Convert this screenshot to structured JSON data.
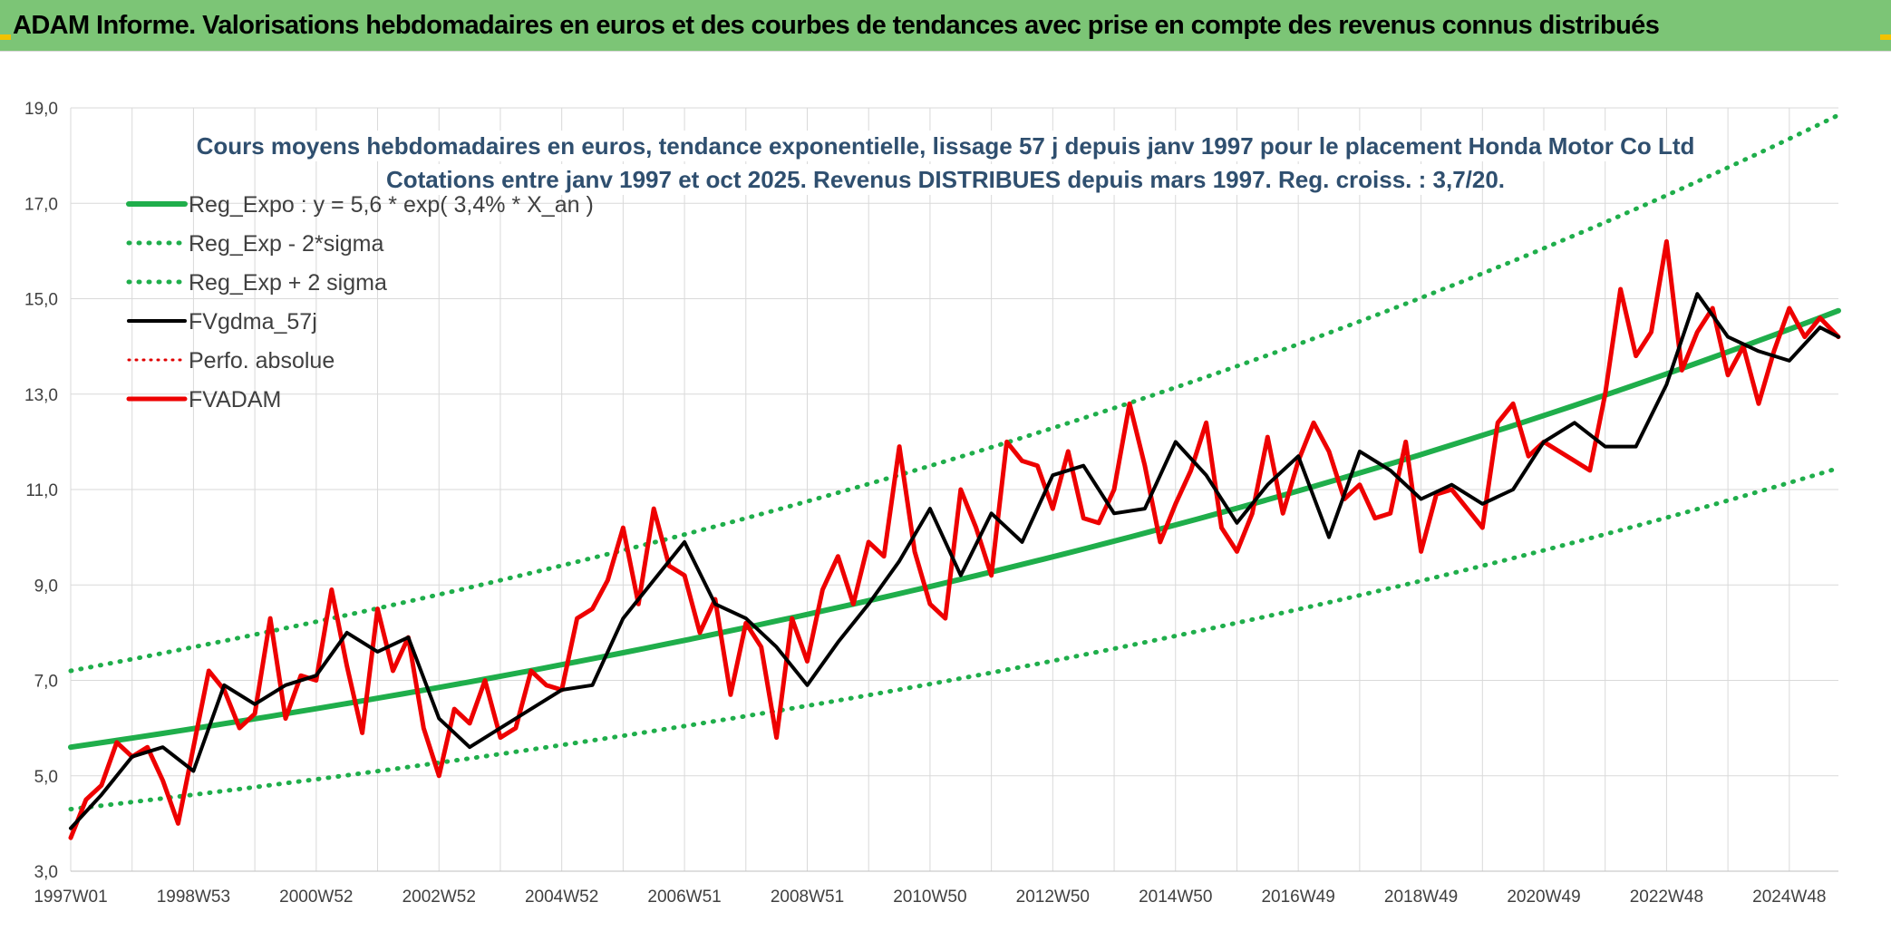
{
  "header": {
    "title": "ADAM Informe. Valorisations hebdomadaires en euros et des courbes de tendances avec prise en compte des revenus connus distribués"
  },
  "colors": {
    "banner": "#7cc576",
    "trend": "#1fae4b",
    "sigma": "#1fae4b",
    "gdma": "#000000",
    "perf": "#e00000",
    "fvadam": "#ee0000",
    "grid": "#d9d9d9",
    "corner": "#f2c200"
  },
  "chart_data": {
    "type": "line",
    "title": [
      "Cours moyens hebdomadaires en euros, tendance exponentielle, lissage 57 j depuis janv 1997 pour le placement Honda Motor Co Ltd",
      "Cotations entre janv 1997 et oct 2025. Revenus DISTRIBUES depuis mars 1997. Reg. croiss. : 3,7/20."
    ],
    "xlabel": "",
    "ylabel": "",
    "ylim": [
      3.0,
      19.0
    ],
    "xlim": [
      1997.0,
      2025.8
    ],
    "grid": true,
    "legend_position": "top-left",
    "y_ticks": [
      "3,0",
      "5,0",
      "7,0",
      "9,0",
      "11,0",
      "13,0",
      "15,0",
      "17,0",
      "19,0"
    ],
    "x_ticks": [
      {
        "label": "1997W01",
        "x": 1997.0
      },
      {
        "label": "1998W53",
        "x": 1999.0
      },
      {
        "label": "2000W52",
        "x": 2001.0
      },
      {
        "label": "2002W52",
        "x": 2003.0
      },
      {
        "label": "2004W52",
        "x": 2005.0
      },
      {
        "label": "2006W51",
        "x": 2007.0
      },
      {
        "label": "2008W51",
        "x": 2009.0
      },
      {
        "label": "2010W50",
        "x": 2011.0
      },
      {
        "label": "2012W50",
        "x": 2013.0
      },
      {
        "label": "2014W50",
        "x": 2015.0
      },
      {
        "label": "2016W49",
        "x": 2017.0
      },
      {
        "label": "2018W49",
        "x": 2019.0
      },
      {
        "label": "2020W49",
        "x": 2021.0
      },
      {
        "label": "2022W48",
        "x": 2023.0
      },
      {
        "label": "2024W48",
        "x": 2025.0
      }
    ],
    "series": [
      {
        "name": "Reg_Expo : y = 5,6 * exp( 3,4% *  X_an )",
        "style": "solid-thick-green",
        "x": [
          1997.0,
          2025.8
        ],
        "y": [
          5.6,
          14.75
        ]
      },
      {
        "name": "Reg_Exp - 2*sigma",
        "style": "dotted-green",
        "x": [
          1997.0,
          2025.8
        ],
        "y": [
          4.3,
          11.45
        ]
      },
      {
        "name": "Reg_Exp + 2 sigma",
        "style": "dotted-green",
        "x": [
          1997.0,
          2025.8
        ],
        "y": [
          7.2,
          18.85
        ]
      },
      {
        "name": "FVgdma_57j",
        "style": "solid-black",
        "x": [
          1997.0,
          1997.5,
          1998.0,
          1998.5,
          1999.0,
          1999.5,
          2000.0,
          2000.5,
          2001.0,
          2001.5,
          2002.0,
          2002.5,
          2003.0,
          2003.5,
          2004.0,
          2004.5,
          2005.0,
          2005.5,
          2006.0,
          2006.5,
          2007.0,
          2007.5,
          2008.0,
          2008.5,
          2009.0,
          2009.5,
          2010.0,
          2010.5,
          2011.0,
          2011.5,
          2012.0,
          2012.5,
          2013.0,
          2013.5,
          2014.0,
          2014.5,
          2015.0,
          2015.5,
          2016.0,
          2016.5,
          2017.0,
          2017.5,
          2018.0,
          2018.5,
          2019.0,
          2019.5,
          2020.0,
          2020.5,
          2021.0,
          2021.5,
          2022.0,
          2022.5,
          2023.0,
          2023.5,
          2024.0,
          2024.5,
          2025.0,
          2025.5,
          2025.8
        ],
        "y": [
          3.9,
          4.6,
          5.4,
          5.6,
          5.1,
          6.9,
          6.5,
          6.9,
          7.1,
          8.0,
          7.6,
          7.9,
          6.2,
          5.6,
          6.0,
          6.4,
          6.8,
          6.9,
          8.3,
          9.1,
          9.9,
          8.6,
          8.3,
          7.7,
          6.9,
          7.8,
          8.6,
          9.5,
          10.6,
          9.2,
          10.5,
          9.9,
          11.3,
          11.5,
          10.5,
          10.6,
          12.0,
          11.3,
          10.3,
          11.1,
          11.7,
          10.0,
          11.8,
          11.4,
          10.8,
          11.1,
          10.7,
          11.0,
          12.0,
          12.4,
          11.9,
          11.9,
          13.2,
          15.1,
          14.2,
          13.9,
          13.7,
          14.4,
          14.2
        ]
      },
      {
        "name": "Perfo. absolue",
        "style": "dotted-red",
        "x": [],
        "y": []
      },
      {
        "name": "FVADAM",
        "style": "solid-thick-red",
        "x": [
          1997.0,
          1997.25,
          1997.5,
          1997.75,
          1998.0,
          1998.25,
          1998.5,
          1998.75,
          1999.0,
          1999.25,
          1999.5,
          1999.75,
          2000.0,
          2000.25,
          2000.5,
          2000.75,
          2001.0,
          2001.25,
          2001.5,
          2001.75,
          2002.0,
          2002.25,
          2002.5,
          2002.75,
          2003.0,
          2003.25,
          2003.5,
          2003.75,
          2004.0,
          2004.25,
          2004.5,
          2004.75,
          2005.0,
          2005.25,
          2005.5,
          2005.75,
          2006.0,
          2006.25,
          2006.5,
          2006.75,
          2007.0,
          2007.25,
          2007.5,
          2007.75,
          2008.0,
          2008.25,
          2008.5,
          2008.75,
          2009.0,
          2009.25,
          2009.5,
          2009.75,
          2010.0,
          2010.25,
          2010.5,
          2010.75,
          2011.0,
          2011.25,
          2011.5,
          2011.75,
          2012.0,
          2012.25,
          2012.5,
          2012.75,
          2013.0,
          2013.25,
          2013.5,
          2013.75,
          2014.0,
          2014.25,
          2014.5,
          2014.75,
          2015.0,
          2015.25,
          2015.5,
          2015.75,
          2016.0,
          2016.25,
          2016.5,
          2016.75,
          2017.0,
          2017.25,
          2017.5,
          2017.75,
          2018.0,
          2018.25,
          2018.5,
          2018.75,
          2019.0,
          2019.25,
          2019.5,
          2019.75,
          2020.0,
          2020.25,
          2020.5,
          2020.75,
          2021.0,
          2021.25,
          2021.5,
          2021.75,
          2022.0,
          2022.25,
          2022.5,
          2022.75,
          2023.0,
          2023.25,
          2023.5,
          2023.75,
          2024.0,
          2024.25,
          2024.5,
          2024.75,
          2025.0,
          2025.25,
          2025.5,
          2025.8
        ],
        "y": [
          3.7,
          4.5,
          4.8,
          5.7,
          5.4,
          5.6,
          4.9,
          4.0,
          5.6,
          7.2,
          6.8,
          6.0,
          6.3,
          8.3,
          6.2,
          7.1,
          7.0,
          8.9,
          7.3,
          5.9,
          8.5,
          7.2,
          7.9,
          6.0,
          5.0,
          6.4,
          6.1,
          7.0,
          5.8,
          6.0,
          7.2,
          6.9,
          6.8,
          8.3,
          8.5,
          9.1,
          10.2,
          8.6,
          10.6,
          9.4,
          9.2,
          8.0,
          8.7,
          6.7,
          8.2,
          7.7,
          5.8,
          8.3,
          7.4,
          8.9,
          9.6,
          8.6,
          9.9,
          9.6,
          11.9,
          9.7,
          8.6,
          8.3,
          11.0,
          10.2,
          9.2,
          12.0,
          11.6,
          11.5,
          10.6,
          11.8,
          10.4,
          10.3,
          11.0,
          12.8,
          11.5,
          9.9,
          10.7,
          11.4,
          12.4,
          10.2,
          9.7,
          10.5,
          12.1,
          10.5,
          11.6,
          12.4,
          11.8,
          10.8,
          11.1,
          10.4,
          10.5,
          12.0,
          9.7,
          10.9,
          11.0,
          10.6,
          10.2,
          12.4,
          12.8,
          11.7,
          12.0,
          11.8,
          11.6,
          11.4,
          13.0,
          15.2,
          13.8,
          14.3,
          16.2,
          13.5,
          14.3,
          14.8,
          13.4,
          14.0,
          12.8,
          13.9,
          14.8,
          14.2,
          14.6,
          14.2
        ]
      }
    ]
  }
}
